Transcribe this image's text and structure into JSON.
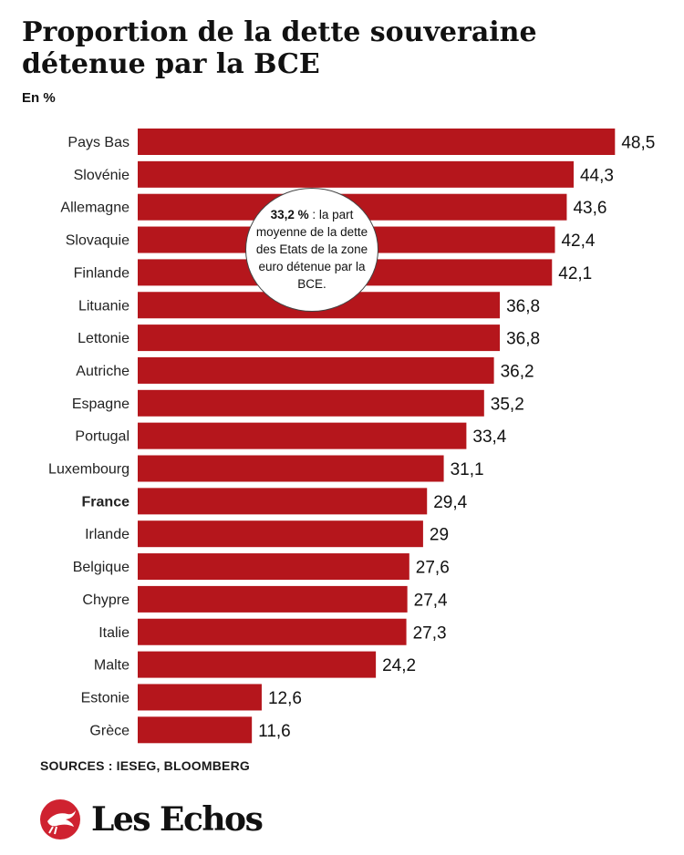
{
  "header": {
    "title": "Proportion de la dette souveraine détenue par la BCE",
    "subtitle": "En %"
  },
  "callout": {
    "value": "33,2 %",
    "text": " : la part moyenne de la dette des Etats de la zone euro détenue par la BCE."
  },
  "footer": {
    "sources": "SOURCES : IESEG, BLOOMBERG",
    "brand": "Les Echos"
  },
  "colors": {
    "bar": "#b5161c",
    "brand": "#cf2230"
  },
  "chart_data": {
    "type": "bar",
    "orientation": "horizontal",
    "categories": [
      "Pays Bas",
      "Slovénie",
      "Allemagne",
      "Slovaquie",
      "Finlande",
      "Lituanie",
      "Lettonie",
      "Autriche",
      "Espagne",
      "Portugal",
      "Luxembourg",
      "France",
      "Irlande",
      "Belgique",
      "Chypre",
      "Italie",
      "Malte",
      "Estonie",
      "Grèce"
    ],
    "values": [
      48.5,
      44.3,
      43.6,
      42.4,
      42.1,
      36.8,
      36.8,
      36.2,
      35.2,
      33.4,
      31.1,
      29.4,
      29,
      27.6,
      27.4,
      27.3,
      24.2,
      12.6,
      11.6
    ],
    "value_labels": [
      "48,5",
      "44,3",
      "43,6",
      "42,4",
      "42,1",
      "36,8",
      "36,8",
      "36,2",
      "35,2",
      "33,4",
      "31,1",
      "29,4",
      "29",
      "27,6",
      "27,4",
      "27,3",
      "24,2",
      "12,6",
      "11,6"
    ],
    "highlight": "France",
    "title": "Proportion de la dette souveraine détenue par la BCE",
    "unit": "En %",
    "grid": false,
    "legend": "none"
  }
}
